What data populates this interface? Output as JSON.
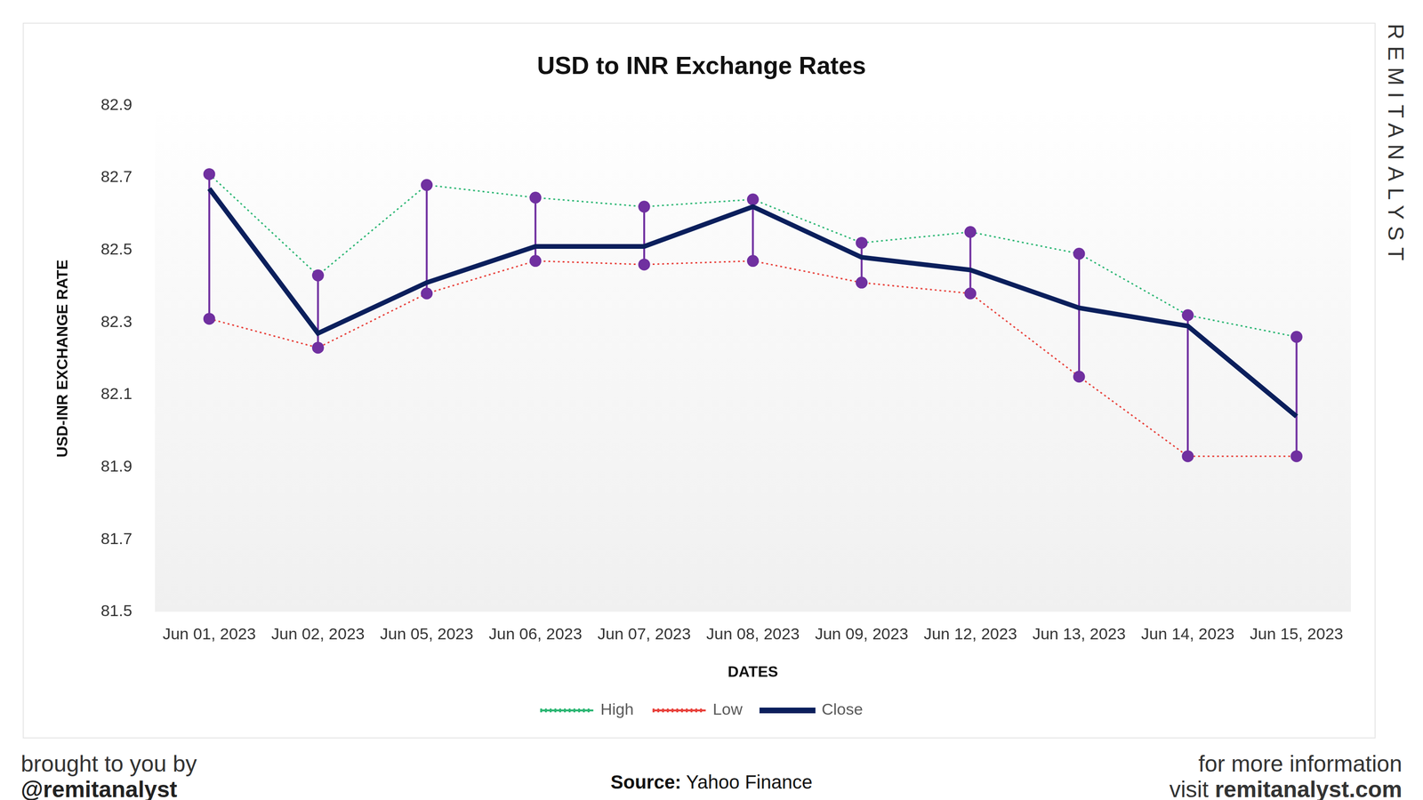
{
  "chart_data": {
    "type": "line",
    "title": "USD to INR Exchange Rates",
    "x_label": "DATES",
    "y_label": "USD-INR EXCHANGE RATE",
    "categories": [
      "Jun 01, 2023",
      "Jun 02, 2023",
      "Jun 05, 2023",
      "Jun 06, 2023",
      "Jun 07, 2023",
      "Jun 08, 2023",
      "Jun 09, 2023",
      "Jun 12, 2023",
      "Jun 13, 2023",
      "Jun 14, 2023",
      "Jun 15, 2023"
    ],
    "series": [
      {
        "name": "High",
        "color": "#2bb673",
        "line_style": "dotted",
        "marker": "circle",
        "values": [
          82.71,
          82.43,
          82.68,
          82.645,
          82.62,
          82.64,
          82.52,
          82.55,
          82.49,
          82.32,
          82.26
        ]
      },
      {
        "name": "Low",
        "color": "#e8403a",
        "line_style": "dotted",
        "marker": "circle",
        "values": [
          82.31,
          82.23,
          82.38,
          82.47,
          82.46,
          82.47,
          82.41,
          82.38,
          82.15,
          81.93,
          81.93
        ]
      },
      {
        "name": "Close",
        "color": "#0b1f5c",
        "line_style": "solid",
        "marker": "none",
        "values": [
          82.67,
          82.27,
          82.41,
          82.51,
          82.51,
          82.62,
          82.48,
          82.445,
          82.34,
          82.29,
          82.04
        ]
      }
    ],
    "ylim": [
      81.5,
      82.9
    ],
    "yticks": [
      81.5,
      81.7,
      81.9,
      82.1,
      82.3,
      82.5,
      82.7,
      82.9
    ],
    "grid": false,
    "legend": "bottom"
  },
  "watermark": "REMITANALYST",
  "footer_left": [
    "brought to you by",
    "@remitanalyst"
  ],
  "source": {
    "label": "Source:",
    "text": "Yahoo Finance"
  },
  "footer_right": {
    "line1": "for more information",
    "line2_prefix": "visit",
    "line2_link": "remitanalyst.com"
  }
}
